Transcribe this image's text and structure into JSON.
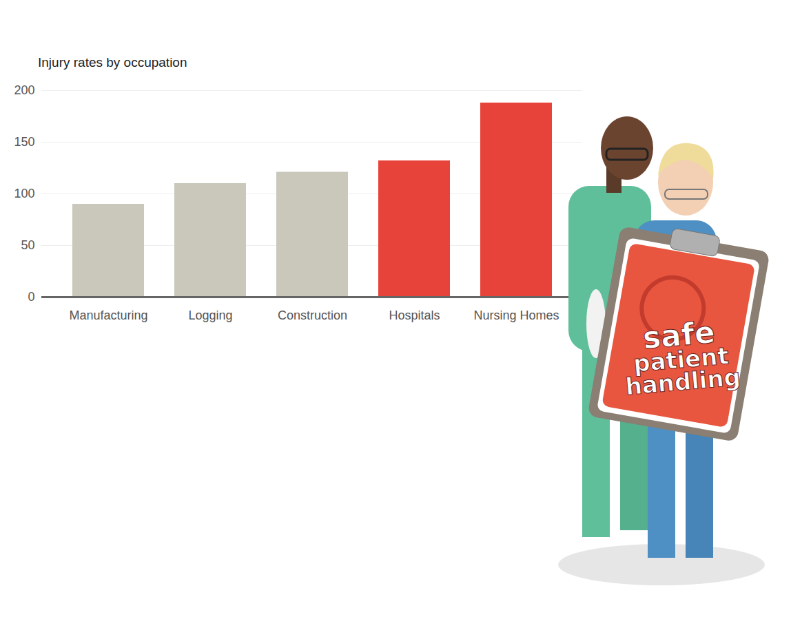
{
  "chart_data": {
    "type": "bar",
    "title": "Injury rates by occupation",
    "categories": [
      "Manufacturing",
      "Logging",
      "Construction",
      "Hospitals",
      "Nursing Homes"
    ],
    "values": [
      90,
      110,
      121,
      132,
      188
    ],
    "colors": [
      "#c9c8bb",
      "#c9c8bb",
      "#c9c8bb",
      "#e8433a",
      "#e8433a"
    ],
    "ylim": [
      0,
      200
    ],
    "yticks": [
      0,
      50,
      100,
      150,
      200
    ],
    "grid": true,
    "annotations": [
      "safe patient handling"
    ]
  }
}
